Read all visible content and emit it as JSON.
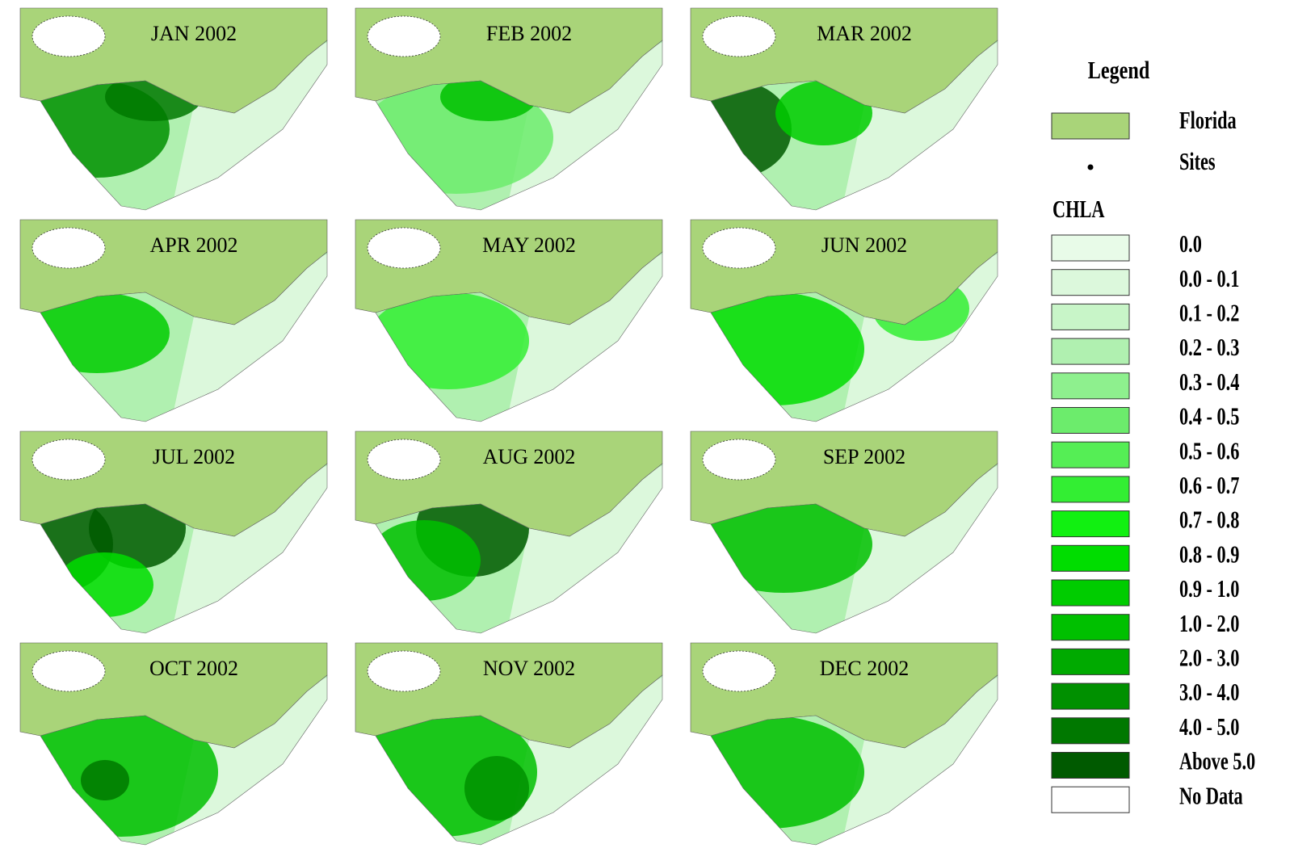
{
  "panels": [
    {
      "title": "JAN 2002"
    },
    {
      "title": "FEB 2002"
    },
    {
      "title": "MAR 2002"
    },
    {
      "title": "APR 2002"
    },
    {
      "title": "MAY 2002"
    },
    {
      "title": "JUN 2002"
    },
    {
      "title": "JUL 2002"
    },
    {
      "title": "AUG 2002"
    },
    {
      "title": "SEP 2002"
    },
    {
      "title": "OCT 2002"
    },
    {
      "title": "NOV 2002"
    },
    {
      "title": "DEC 2002"
    }
  ],
  "legend": {
    "title": "Legend",
    "florida": {
      "label": "Florida",
      "color": "#a9d479"
    },
    "sites": {
      "label": "Sites"
    },
    "chla": {
      "title": "CHLA",
      "classes": [
        {
          "label": "0.0",
          "color": "#e8fbe8"
        },
        {
          "label": "0.0 - 0.1",
          "color": "#dcf8dc"
        },
        {
          "label": "0.1 - 0.2",
          "color": "#c8f5c8"
        },
        {
          "label": "0.2 - 0.3",
          "color": "#b0f0b0"
        },
        {
          "label": "0.3 - 0.4",
          "color": "#8ef08e"
        },
        {
          "label": "0.4 - 0.5",
          "color": "#6cec6c"
        },
        {
          "label": "0.5 - 0.6",
          "color": "#55ee55"
        },
        {
          "label": "0.6 - 0.7",
          "color": "#33ee33"
        },
        {
          "label": "0.7 - 0.8",
          "color": "#11f011"
        },
        {
          "label": "0.8 - 0.9",
          "color": "#00dd00"
        },
        {
          "label": "0.9 - 1.0",
          "color": "#00cc00"
        },
        {
          "label": "1.0 - 2.0",
          "color": "#00c000"
        },
        {
          "label": "2.0 - 3.0",
          "color": "#00aa00"
        },
        {
          "label": "3.0 - 4.0",
          "color": "#009000"
        },
        {
          "label": "4.0 - 5.0",
          "color": "#007800"
        },
        {
          "label": "Above 5.0",
          "color": "#005a00"
        },
        {
          "label": "No Data",
          "color": "#ffffff"
        }
      ]
    }
  }
}
